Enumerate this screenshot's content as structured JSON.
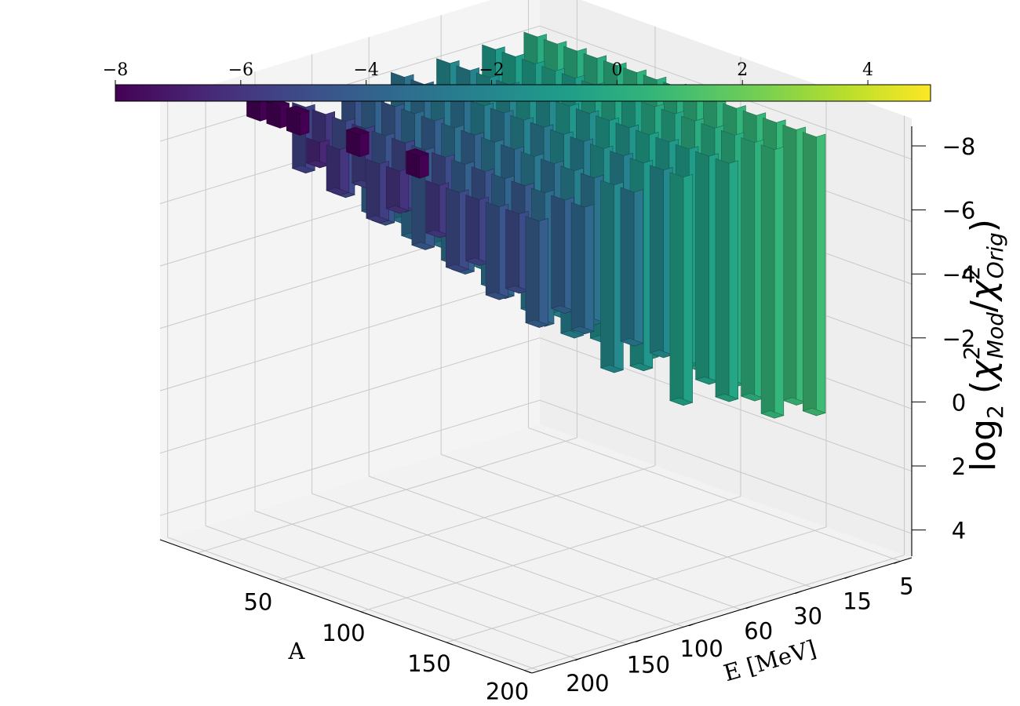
{
  "chart_data": {
    "type": "bar3d",
    "title": "",
    "xlabel": "A",
    "ylabel": "E [MeV]",
    "zlabel": "log₂ (χ²_Mod/χ²_Orig)",
    "zlabel_parts": {
      "log": "log",
      "log_sub": "2",
      "chi": "χ",
      "sup": "2",
      "sub_mod": "Mod",
      "slash": "/",
      "sub_orig": "Orig"
    },
    "x_ticks": [
      "50",
      "100",
      "150",
      "200"
    ],
    "y_ticks": [
      "5",
      "15",
      "30",
      "60",
      "100",
      "150",
      "200"
    ],
    "z_ticks": [
      "−8",
      "−6",
      "−4",
      "−2",
      "0",
      "2",
      "4"
    ],
    "zlim": [
      -8,
      5
    ],
    "z_axis_inverted": true,
    "colorbar": {
      "colormap": "viridis",
      "range": [
        -8,
        5
      ],
      "ticks": [
        "−8",
        "−6",
        "−4",
        "−2",
        "0",
        "2",
        "4"
      ],
      "orientation": "horizontal",
      "placement": "top"
    },
    "grid": true,
    "series": [
      {
        "e_index": 0,
        "A": [
          40,
          52,
          64,
          76,
          88,
          100,
          112,
          124,
          136,
          148,
          160,
          172,
          184,
          196,
          208
        ],
        "values": [
          0.9,
          0.8,
          0.7,
          0.6,
          0.5,
          0.4,
          0.3,
          0.1,
          0.2,
          0.3,
          0.1,
          0.0,
          0.1,
          0.2,
          0.0
        ]
      },
      {
        "e_index": 1,
        "A": [
          40,
          52,
          64,
          76,
          88,
          100,
          112,
          124,
          136,
          148,
          160,
          172,
          184,
          196,
          208
        ],
        "values": [
          0.6,
          0.3,
          0.1,
          -0.1,
          0.0,
          -0.4,
          -0.2,
          -0.6,
          -0.3,
          -0.5,
          -0.8,
          -0.6,
          -0.9,
          -0.7,
          -1.0
        ]
      },
      {
        "e_index": 2,
        "A": [
          40,
          52,
          64,
          76,
          88,
          100,
          112,
          124,
          136,
          148,
          160,
          172,
          184,
          196,
          208
        ],
        "values": [
          -0.3,
          -0.6,
          -0.9,
          -1.1,
          -0.7,
          -1.3,
          -1.0,
          -1.6,
          -1.2,
          -1.8,
          -1.4,
          -2.0,
          -1.6,
          -2.2,
          -1.9
        ]
      },
      {
        "e_index": 3,
        "A": [
          40,
          52,
          64,
          76,
          88,
          100,
          112,
          124,
          136,
          148,
          160,
          172,
          184,
          196,
          208
        ],
        "values": [
          -0.6,
          -1.8,
          -1.2,
          -2.2,
          -1.6,
          -2.5,
          -1.9,
          -2.8,
          -2.2,
          -3.0,
          -2.5,
          -3.2,
          -2.7,
          -3.4,
          -3.0
        ]
      },
      {
        "e_index": 4,
        "A": [
          40,
          52,
          64,
          76,
          88,
          100,
          112,
          124,
          136,
          148,
          160,
          172,
          184,
          196,
          208
        ],
        "values": [
          -2.8,
          -1.8,
          -3.0,
          -2.4,
          -3.3,
          -2.7,
          -3.6,
          -3.0,
          -3.9,
          -3.3,
          -4.1,
          -3.6,
          -4.4,
          -3.9,
          -4.6
        ]
      },
      {
        "e_index": 5,
        "A": [
          40,
          52,
          64,
          76,
          88,
          100,
          112,
          124,
          136,
          148,
          160,
          172,
          184,
          196,
          208
        ],
        "values": [
          -3.6,
          -4.0,
          -3.4,
          -4.4,
          -3.8,
          -4.7,
          -4.1,
          -5.0,
          -4.4,
          -5.3,
          -4.7,
          -5.6,
          -5.1,
          -5.9,
          -5.4
        ]
      },
      {
        "e_index": 6,
        "A": [
          40,
          52,
          64,
          76,
          88,
          100,
          112,
          124,
          136,
          148,
          160,
          172,
          184,
          196,
          208
        ],
        "values": [
          -4.2,
          -5.0,
          -4.6,
          -5.4,
          -5.0,
          -5.8,
          -8.0,
          -6.1,
          -5.6,
          -8.0,
          -6.0,
          -6.6,
          -8.0,
          -8.0,
          -8.0
        ]
      }
    ]
  }
}
